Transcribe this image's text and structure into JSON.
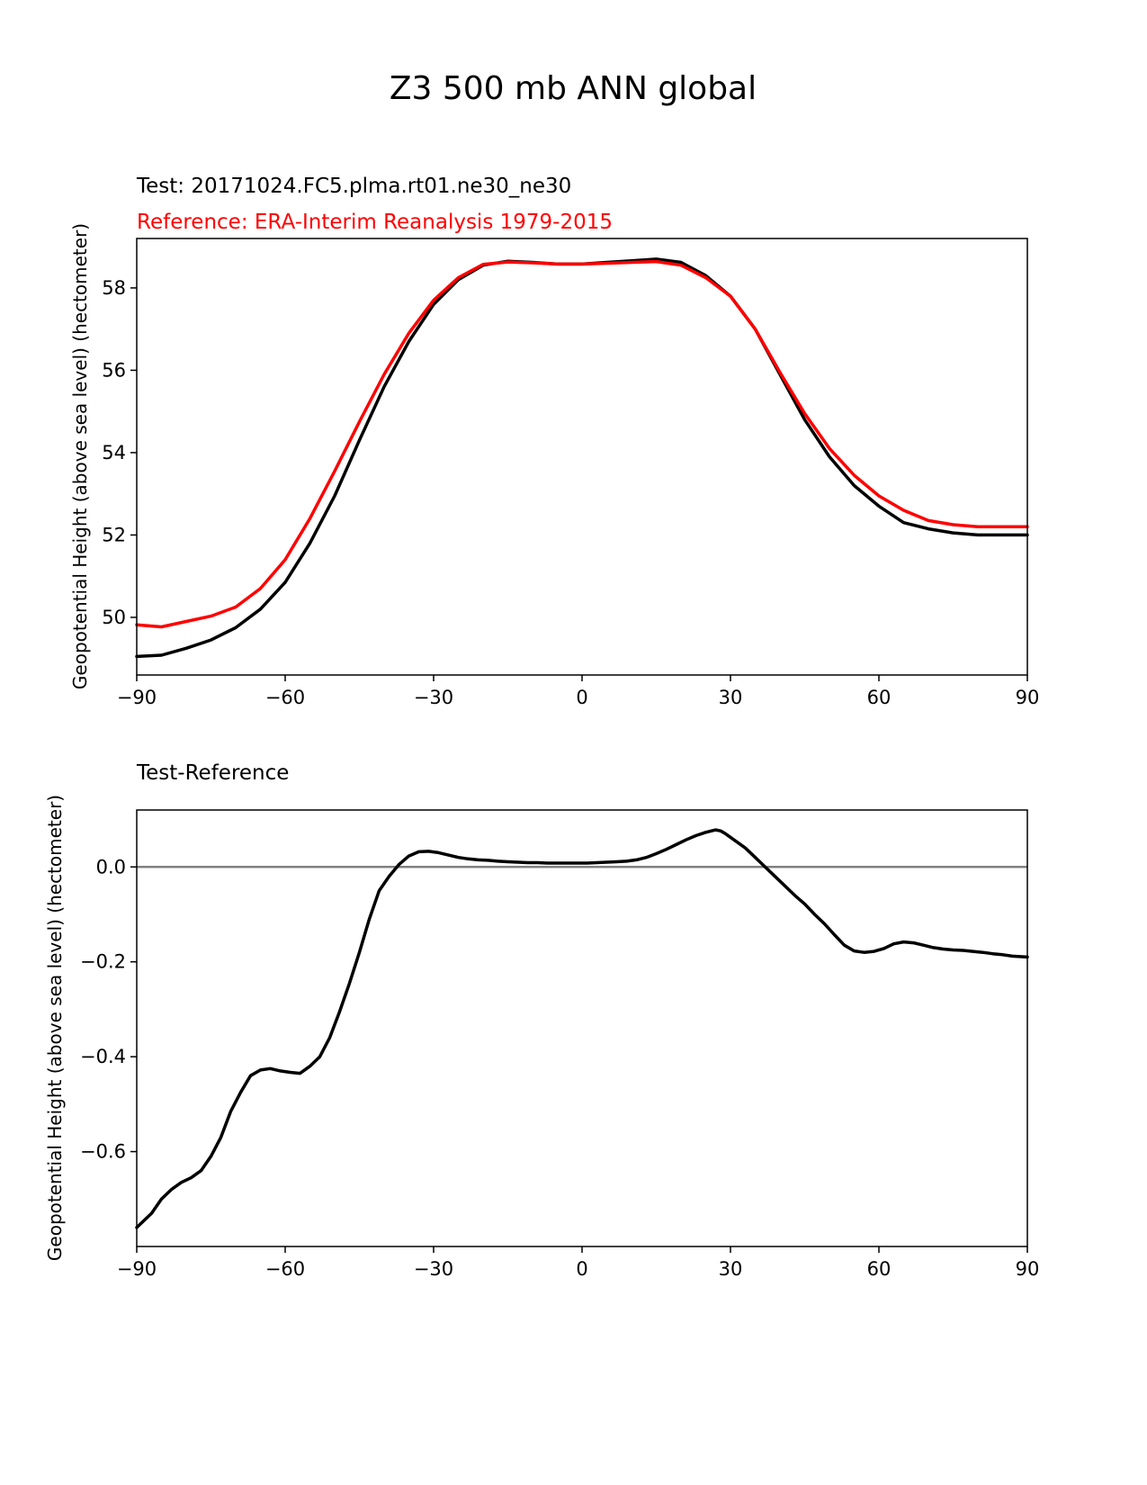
{
  "figure_title": "Z3 500 mb ANN global",
  "colors": {
    "test": "#000000",
    "reference": "#ff0000",
    "zero_line": "#808080",
    "axes": "#000000"
  },
  "chart_data": [
    {
      "type": "line",
      "title_test": "Test: 20171024.FC5.plma.rt01.ne30_ne30",
      "title_reference": "Reference: ERA-Interim Reanalysis 1979-2015",
      "xlabel": "",
      "ylabel": "Geopotential Height (above sea level) (hectometer)",
      "xlim": [
        -90,
        90
      ],
      "ylim": [
        48.6,
        59.2
      ],
      "xticks": [
        -90,
        -60,
        -30,
        0,
        30,
        60,
        90
      ],
      "xtick_labels": [
        "−90",
        "−60",
        "−30",
        "0",
        "30",
        "60",
        "90"
      ],
      "yticks": [
        50,
        52,
        54,
        56,
        58
      ],
      "ytick_labels": [
        "50",
        "52",
        "54",
        "56",
        "58"
      ],
      "series": [
        {
          "name": "Test",
          "color": "#000000",
          "x": [
            -90,
            -85,
            -80,
            -75,
            -70,
            -65,
            -60,
            -55,
            -50,
            -45,
            -40,
            -35,
            -30,
            -25,
            -20,
            -15,
            -10,
            -5,
            0,
            5,
            10,
            15,
            20,
            25,
            30,
            35,
            40,
            45,
            50,
            55,
            60,
            65,
            70,
            75,
            80,
            85,
            90
          ],
          "y": [
            49.05,
            49.08,
            49.25,
            49.45,
            49.75,
            50.2,
            50.85,
            51.8,
            52.95,
            54.3,
            55.6,
            56.7,
            57.6,
            58.2,
            58.55,
            58.65,
            58.62,
            58.58,
            58.58,
            58.62,
            58.66,
            58.7,
            58.62,
            58.3,
            57.8,
            57.0,
            55.9,
            54.8,
            53.9,
            53.2,
            52.7,
            52.3,
            52.15,
            52.05,
            52.0,
            52.0,
            52.0
          ]
        },
        {
          "name": "Reference",
          "color": "#ff0000",
          "x": [
            -90,
            -85,
            -80,
            -75,
            -70,
            -65,
            -60,
            -55,
            -50,
            -45,
            -40,
            -35,
            -30,
            -25,
            -20,
            -15,
            -10,
            -5,
            0,
            5,
            10,
            15,
            20,
            25,
            30,
            35,
            40,
            45,
            50,
            55,
            60,
            65,
            70,
            75,
            80,
            85,
            90
          ],
          "y": [
            49.82,
            49.77,
            49.9,
            50.03,
            50.25,
            50.7,
            51.4,
            52.4,
            53.55,
            54.75,
            55.9,
            56.9,
            57.7,
            58.25,
            58.57,
            58.63,
            58.61,
            58.58,
            58.58,
            58.6,
            58.62,
            58.64,
            58.55,
            58.25,
            57.8,
            57.0,
            55.95,
            54.95,
            54.1,
            53.45,
            52.95,
            52.6,
            52.35,
            52.25,
            52.2,
            52.2,
            52.2
          ]
        }
      ]
    },
    {
      "type": "line",
      "title": "Test-Reference",
      "xlabel": "",
      "ylabel": "Geopotential Height (above sea level) (hectometer)",
      "xlim": [
        -90,
        90
      ],
      "ylim": [
        -0.8,
        0.12
      ],
      "xticks": [
        -90,
        -60,
        -30,
        0,
        30,
        60,
        90
      ],
      "xtick_labels": [
        "−90",
        "−60",
        "−30",
        "0",
        "30",
        "60",
        "90"
      ],
      "yticks": [
        0.0,
        -0.2,
        -0.4,
        -0.6
      ],
      "ytick_labels": [
        "0.0",
        "−0.2",
        "−0.4",
        "−0.6"
      ],
      "zero_line": 0.0,
      "series": [
        {
          "name": "Test-Reference",
          "color": "#000000",
          "x": [
            -90,
            -87,
            -85,
            -83,
            -81,
            -79,
            -77,
            -75,
            -73,
            -71,
            -69,
            -67,
            -65,
            -63,
            -61,
            -59,
            -57,
            -55,
            -53,
            -51,
            -49,
            -47,
            -45,
            -43,
            -41,
            -39,
            -37,
            -35,
            -33,
            -31,
            -29,
            -27,
            -25,
            -23,
            -21,
            -19,
            -17,
            -15,
            -13,
            -11,
            -9,
            -7,
            -5,
            -3,
            -1,
            1,
            3,
            5,
            7,
            9,
            11,
            13,
            15,
            17,
            19,
            21,
            23,
            25,
            27,
            28,
            29,
            31,
            33,
            35,
            37,
            39,
            41,
            43,
            45,
            47,
            49,
            51,
            53,
            55,
            57,
            59,
            61,
            63,
            65,
            67,
            69,
            71,
            73,
            75,
            77,
            79,
            81,
            83,
            85,
            87,
            90
          ],
          "y": [
            -0.76,
            -0.73,
            -0.7,
            -0.68,
            -0.665,
            -0.655,
            -0.64,
            -0.61,
            -0.57,
            -0.515,
            -0.475,
            -0.44,
            -0.428,
            -0.425,
            -0.43,
            -0.433,
            -0.435,
            -0.42,
            -0.4,
            -0.36,
            -0.305,
            -0.245,
            -0.18,
            -0.11,
            -0.05,
            -0.02,
            0.005,
            0.023,
            0.032,
            0.033,
            0.03,
            0.025,
            0.02,
            0.017,
            0.015,
            0.014,
            0.012,
            0.011,
            0.01,
            0.009,
            0.009,
            0.008,
            0.008,
            0.008,
            0.008,
            0.008,
            0.009,
            0.01,
            0.011,
            0.012,
            0.015,
            0.02,
            0.028,
            0.037,
            0.047,
            0.057,
            0.066,
            0.073,
            0.078,
            0.076,
            0.07,
            0.055,
            0.04,
            0.02,
            0.0,
            -0.02,
            -0.04,
            -0.06,
            -0.078,
            -0.1,
            -0.12,
            -0.143,
            -0.165,
            -0.177,
            -0.18,
            -0.178,
            -0.172,
            -0.162,
            -0.158,
            -0.16,
            -0.165,
            -0.17,
            -0.173,
            -0.175,
            -0.176,
            -0.178,
            -0.18,
            -0.183,
            -0.185,
            -0.188,
            -0.19
          ]
        }
      ]
    }
  ]
}
